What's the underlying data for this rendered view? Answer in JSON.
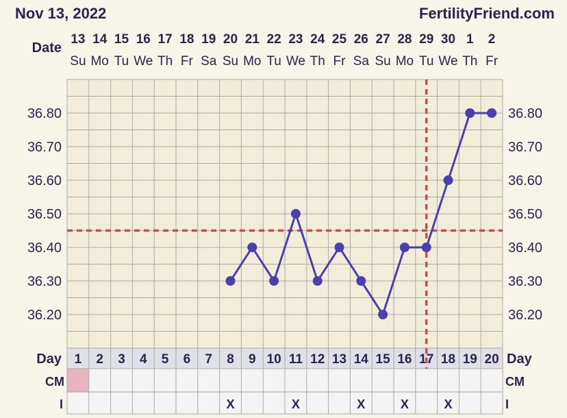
{
  "header": {
    "date_title": "Nov 13, 2022",
    "site": "FertilityFriend.com"
  },
  "labels": {
    "date": "Date",
    "day": "Day",
    "cm": "CM",
    "intercourse": "I"
  },
  "colors": {
    "series": "#4a3fb0",
    "coverline": "#c0504d",
    "grid": "#a9a9a9",
    "background": "#f7f5e9",
    "chart_bg": "#f1edd8",
    "period_cell": "#e8b4c0"
  },
  "chart_data": {
    "type": "line",
    "dates": [
      "13",
      "14",
      "15",
      "16",
      "17",
      "18",
      "19",
      "20",
      "21",
      "22",
      "23",
      "24",
      "25",
      "26",
      "27",
      "28",
      "29",
      "30",
      "1",
      "2"
    ],
    "weekdays": [
      "Su",
      "Mo",
      "Tu",
      "We",
      "Th",
      "Fr",
      "Sa",
      "Su",
      "Mo",
      "Tu",
      "We",
      "Th",
      "Fr",
      "Sa",
      "Su",
      "Mo",
      "Tu",
      "We",
      "Th",
      "Fr"
    ],
    "cycle_days": [
      1,
      2,
      3,
      4,
      5,
      6,
      7,
      8,
      9,
      10,
      11,
      12,
      13,
      14,
      15,
      16,
      17,
      18,
      19,
      20
    ],
    "series": [
      {
        "x": [
          8,
          9,
          10,
          11,
          12,
          13,
          14,
          15,
          16,
          17,
          18,
          19,
          20
        ],
        "values": [
          36.3,
          36.4,
          36.3,
          36.5,
          36.3,
          36.4,
          36.3,
          36.2,
          36.4,
          36.4,
          36.6,
          36.8,
          36.8
        ]
      }
    ],
    "y_ticks": [
      "36.20",
      "36.30",
      "36.40",
      "36.50",
      "36.60",
      "36.70",
      "36.80"
    ],
    "ylim": [
      36.1,
      36.9
    ],
    "coverline": 36.45,
    "ovulation_day": 17,
    "intercourse_days": [
      8,
      11,
      14,
      16,
      18
    ],
    "intercourse_mark": "X",
    "period_days": [
      1
    ]
  }
}
